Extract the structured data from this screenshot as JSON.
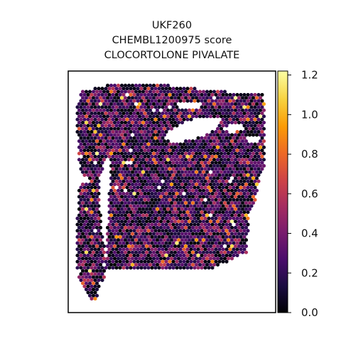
{
  "figure": {
    "title_lines": [
      "UKF260",
      "CHEMBL1200975 score",
      "CLOCORTOLONE PIVALATE"
    ]
  },
  "chart_data": {
    "type": "scatter",
    "subtype": "spatial hexagonal spot map",
    "title": "UKF260\nCHEMBL1200975 score\nCLOCORTOLONE PIVALATE",
    "xlabel": "",
    "ylabel": "",
    "axes_ticks_visible": false,
    "grid": false,
    "colormap": "inferno",
    "colorbar": {
      "position": "right",
      "range": [
        0.0,
        1.22
      ],
      "ticks": [
        0.0,
        0.2,
        0.4,
        0.6,
        0.8,
        1.0,
        1.2
      ],
      "tick_labels": [
        "0.0",
        "0.2",
        "0.4",
        "0.6",
        "0.8",
        "1.0",
        "1.2"
      ]
    },
    "value_distribution": {
      "dominant_range": [
        0.0,
        0.5
      ],
      "max_observed": 1.22,
      "note_values": "most spots dark purple/black (0.0–0.4); scattered orange/yellow highs (0.7–1.2)"
    },
    "colors": {
      "inferno_stops": [
        "#000004",
        "#1b0c41",
        "#4a0c6b",
        "#781c6d",
        "#a52c60",
        "#cf4446",
        "#ed6925",
        "#fb9b06",
        "#f7d13d",
        "#fcffa4"
      ]
    }
  }
}
